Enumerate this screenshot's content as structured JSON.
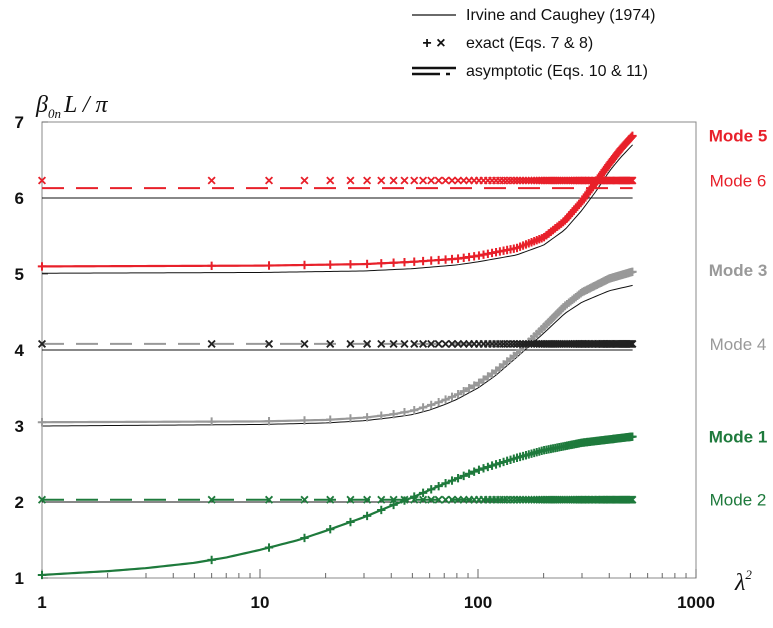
{
  "chart_data": {
    "type": "line",
    "ylabel": {
      "base": "β",
      "sub": "0n",
      "rest": "L / π"
    },
    "xlabel": {
      "base": "λ",
      "sup": "2"
    },
    "xscale": "log",
    "xlim": [
      1,
      1000
    ],
    "ylim": [
      1,
      7
    ],
    "x_ticks": [
      "1",
      "10",
      "100",
      "1000"
    ],
    "y_ticks": [
      "1",
      "2",
      "3",
      "4",
      "5",
      "6",
      "7"
    ],
    "legend": {
      "position": "top-right",
      "entries": [
        {
          "symbol": "solid-line",
          "label": "Irvine and Caughey (1974)"
        },
        {
          "symbol": "+ ×",
          "label": "exact (Eqs. 7 & 8)"
        },
        {
          "symbol": "dashed-line",
          "label": "asymptotic (Eqs. 10 & 11)"
        }
      ]
    },
    "mode_labels": [
      {
        "label": "Mode 5",
        "color": "#e8202a",
        "bold": true,
        "at_y": 6.82
      },
      {
        "label": "Mode 6",
        "color": "#e8202a",
        "bold": false,
        "at_y": 6.23
      },
      {
        "label": "Mode 3",
        "color": "#999999",
        "bold": true,
        "at_y": 5.05
      },
      {
        "label": "Mode 4",
        "color": "#999999",
        "bold": false,
        "at_y": 4.08
      },
      {
        "label": "Mode 1",
        "color": "#1e7a3c",
        "bold": true,
        "at_y": 2.86
      },
      {
        "label": "Mode 2",
        "color": "#1e7a3c",
        "bold": false,
        "at_y": 2.03
      }
    ],
    "series": [
      {
        "name": "Mode 1",
        "kind": "symmetric",
        "color": "#1e7a3c",
        "exact_marker": "+",
        "lambda2_max": 512,
        "x": [
          1,
          1.5,
          2,
          3,
          5,
          7,
          10,
          15,
          20,
          30,
          40,
          50,
          70,
          100,
          150,
          200,
          300,
          512
        ],
        "y": [
          1.04,
          1.07,
          1.09,
          1.13,
          1.2,
          1.27,
          1.37,
          1.5,
          1.62,
          1.8,
          1.95,
          2.06,
          2.24,
          2.42,
          2.58,
          2.68,
          2.78,
          2.86
        ],
        "irvine_y": [
          1.04,
          1.07,
          1.09,
          1.13,
          1.2,
          1.27,
          1.37,
          1.5,
          1.62,
          1.8,
          1.95,
          2.06,
          2.24,
          2.42,
          2.58,
          2.68,
          2.77,
          2.83
        ]
      },
      {
        "name": "Mode 2",
        "kind": "antisymmetric",
        "color": "#1e7a3c",
        "exact_marker": "x",
        "value": 2.03,
        "irvine_value": 2.0,
        "lambda2_max": 512
      },
      {
        "name": "Mode 3",
        "kind": "symmetric",
        "color": "#999999",
        "exact_marker": "+",
        "lambda2_max": 512,
        "x": [
          1,
          10,
          20,
          30,
          40,
          50,
          60,
          70,
          80,
          100,
          120,
          150,
          200,
          250,
          300,
          400,
          512
        ],
        "y": [
          3.05,
          3.06,
          3.08,
          3.11,
          3.15,
          3.2,
          3.27,
          3.34,
          3.41,
          3.56,
          3.72,
          3.95,
          4.3,
          4.58,
          4.76,
          4.94,
          5.03
        ],
        "irvine_y": [
          3.0,
          3.02,
          3.04,
          3.07,
          3.11,
          3.15,
          3.21,
          3.28,
          3.35,
          3.5,
          3.66,
          3.9,
          4.22,
          4.48,
          4.63,
          4.78,
          4.85
        ]
      },
      {
        "name": "Mode 4",
        "kind": "antisymmetric",
        "color": "#222222",
        "exact_marker": "x",
        "dash_color": "#999999",
        "value": 4.08,
        "irvine_value": 4.0,
        "lambda2_max": 512
      },
      {
        "name": "Mode 5",
        "kind": "symmetric",
        "color": "#e8202a",
        "exact_marker": "+",
        "lambda2_max": 512,
        "x": [
          1,
          10,
          30,
          50,
          80,
          100,
          150,
          200,
          250,
          300,
          350,
          400,
          450,
          512
        ],
        "y": [
          5.1,
          5.11,
          5.13,
          5.16,
          5.2,
          5.24,
          5.34,
          5.48,
          5.7,
          5.96,
          6.22,
          6.45,
          6.64,
          6.82
        ],
        "irvine_y": [
          5.01,
          5.02,
          5.04,
          5.07,
          5.12,
          5.16,
          5.25,
          5.38,
          5.58,
          5.84,
          6.1,
          6.35,
          6.53,
          6.7
        ]
      },
      {
        "name": "Mode 6",
        "kind": "antisymmetric",
        "color": "#e8202a",
        "exact_marker": "x",
        "value": 6.23,
        "asym_value": 6.13,
        "irvine_value": 6.0,
        "lambda2_max": 512
      }
    ],
    "exact_x_spacing": "λ² = (5k + 1), k = 0, 1, 2, ..."
  }
}
